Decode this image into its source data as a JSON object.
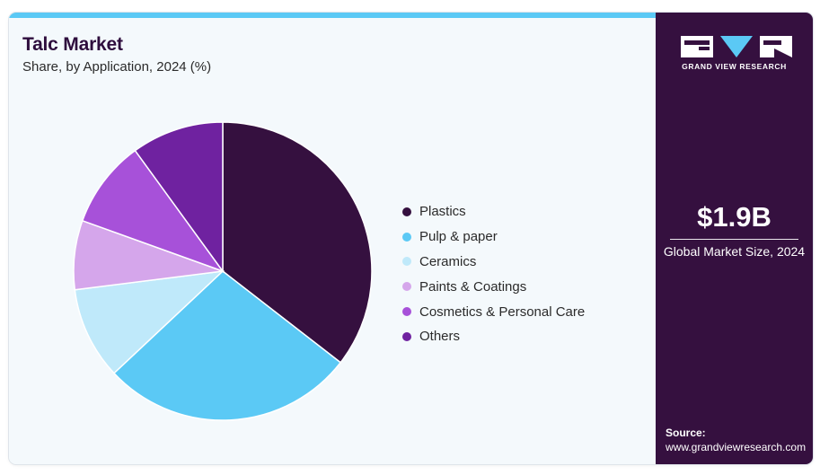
{
  "header": {
    "title": "Talc Market",
    "subtitle": "Share, by Application, 2024 (%)"
  },
  "chart_data": {
    "type": "pie",
    "categories": [
      "Plastics",
      "Pulp & paper",
      "Ceramics",
      "Paints & Coatings",
      "Cosmetics & Personal Care",
      "Others"
    ],
    "values": [
      35.5,
      27.5,
      10,
      7.5,
      9.5,
      10
    ],
    "colors": [
      "#35103f",
      "#5bc9f5",
      "#bfe9fa",
      "#d5a6eb",
      "#a751d9",
      "#6f22a0"
    ],
    "legend_position": "right",
    "start_angle": "12 o'clock",
    "direction": "clockwise"
  },
  "sidebar": {
    "brand": "GRAND VIEW RESEARCH",
    "market_size_value": "$1.9B",
    "market_size_label": "Global Market Size, 2024",
    "source_label": "Source:",
    "source_url": "www.grandviewresearch.com",
    "logo_icon": "gvr-logo-icon"
  }
}
